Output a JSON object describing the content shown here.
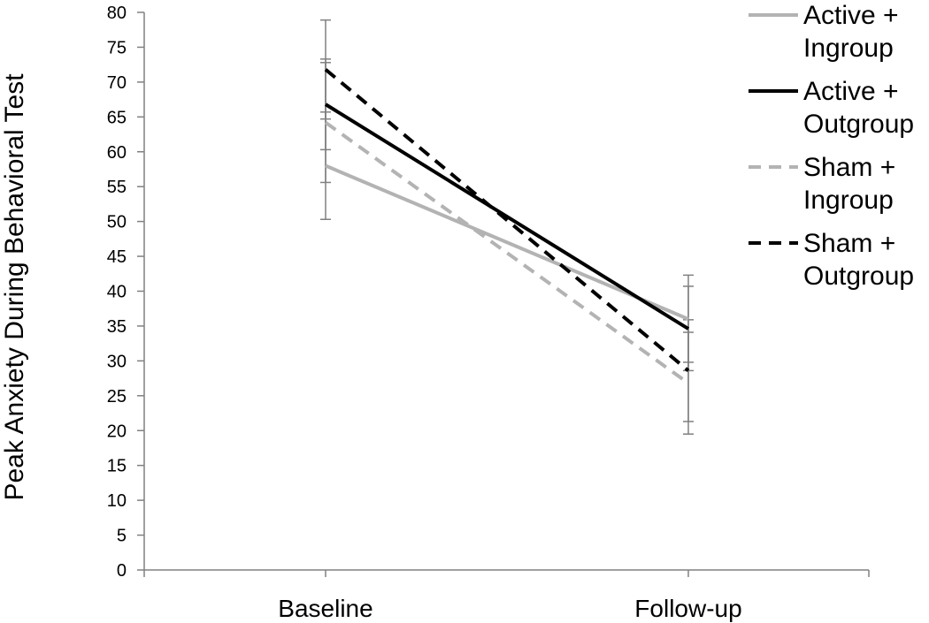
{
  "chart_data": {
    "type": "line",
    "title": "",
    "xlabel": "",
    "ylabel": "Peak Anxiety During Behavioral Test",
    "categories": [
      "Baseline",
      "Follow-up"
    ],
    "ylim": [
      0,
      80
    ],
    "yticks": [
      0,
      5,
      10,
      15,
      20,
      25,
      30,
      35,
      40,
      45,
      50,
      55,
      60,
      65,
      70,
      75,
      80
    ],
    "grid": false,
    "legend_position": "top-right",
    "series": [
      {
        "name_lines": [
          "Active +",
          "Ingroup"
        ],
        "values": [
          58,
          36
        ],
        "error_low": [
          50.3,
          29.8
        ],
        "error_high": [
          65.7,
          42.3
        ],
        "color": "#b3b3b3",
        "dashed": false
      },
      {
        "name_lines": [
          "Active +",
          "Outgroup"
        ],
        "values": [
          66.8,
          34.6
        ],
        "error_low": [
          60.3,
          28.6
        ],
        "error_high": [
          73.3,
          40.7
        ],
        "color": "#000000",
        "dashed": false
      },
      {
        "name_lines": [
          "Sham +",
          "Ingroup"
        ],
        "values": [
          64.2,
          26.8
        ],
        "error_low": [
          55.6,
          19.5
        ],
        "error_high": [
          72.8,
          34.1
        ],
        "color": "#b3b3b3",
        "dashed": true
      },
      {
        "name_lines": [
          "Sham +",
          "Outgroup"
        ],
        "values": [
          71.8,
          28.6
        ],
        "error_low": [
          64.7,
          21.3
        ],
        "error_high": [
          78.9,
          35.9
        ],
        "color": "#000000",
        "dashed": true
      }
    ],
    "errorbar_color": "#808080"
  }
}
